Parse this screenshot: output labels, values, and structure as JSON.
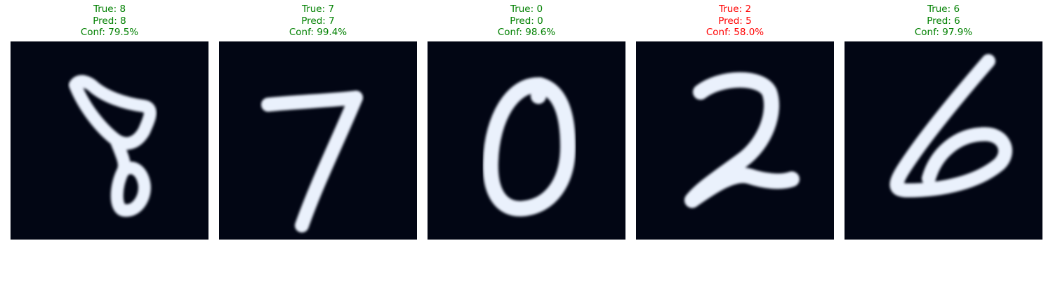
{
  "colors": {
    "correct": "#008000",
    "incorrect": "#ff0000",
    "image_background": "#020614",
    "stroke": "#eaf1fc"
  },
  "samples": [
    {
      "true_text": "True: 8",
      "pred_text": "Pred: 8",
      "conf_text": "Conf: 79.5%",
      "correct": true,
      "true_label": 8,
      "pred_label": 8,
      "confidence": 79.5
    },
    {
      "true_text": "True: 7",
      "pred_text": "Pred: 7",
      "conf_text": "Conf: 99.4%",
      "correct": true,
      "true_label": 7,
      "pred_label": 7,
      "confidence": 99.4
    },
    {
      "true_text": "True: 0",
      "pred_text": "Pred: 0",
      "conf_text": "Conf: 98.6%",
      "correct": true,
      "true_label": 0,
      "pred_label": 0,
      "confidence": 98.6
    },
    {
      "true_text": "True: 2",
      "pred_text": "Pred: 5",
      "conf_text": "Conf: 58.0%",
      "correct": false,
      "true_label": 2,
      "pred_label": 5,
      "confidence": 58.0
    },
    {
      "true_text": "True: 6",
      "pred_text": "Pred: 6",
      "conf_text": "Conf: 97.9%",
      "correct": true,
      "true_label": 6,
      "pred_label": 6,
      "confidence": 97.9
    }
  ]
}
